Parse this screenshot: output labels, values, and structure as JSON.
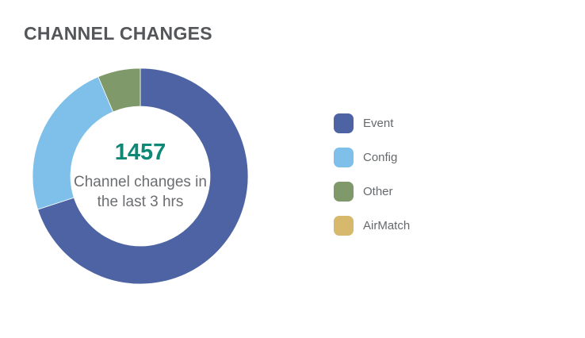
{
  "widget": {
    "title": "CHANNEL CHANGES"
  },
  "chart_data": {
    "type": "pie",
    "donut": true,
    "title": "CHANNEL CHANGES",
    "total": 1457,
    "center_value": "1457",
    "center_value_color": "#0e8877",
    "center_label": "Channel changes in the last 3 hrs",
    "start_angle_deg": 0,
    "direction": "clockwise",
    "inner_radius_ratio": 0.65,
    "legend_position": "right",
    "segments": [
      {
        "label": "Event",
        "value": 1020,
        "color": "#4d63a3"
      },
      {
        "label": "Config",
        "value": 344,
        "color": "#7fc0ea"
      },
      {
        "label": "Other",
        "value": 93,
        "color": "#80996a"
      },
      {
        "label": "AirMatch",
        "value": 0,
        "color": "#d6b96c"
      }
    ]
  }
}
